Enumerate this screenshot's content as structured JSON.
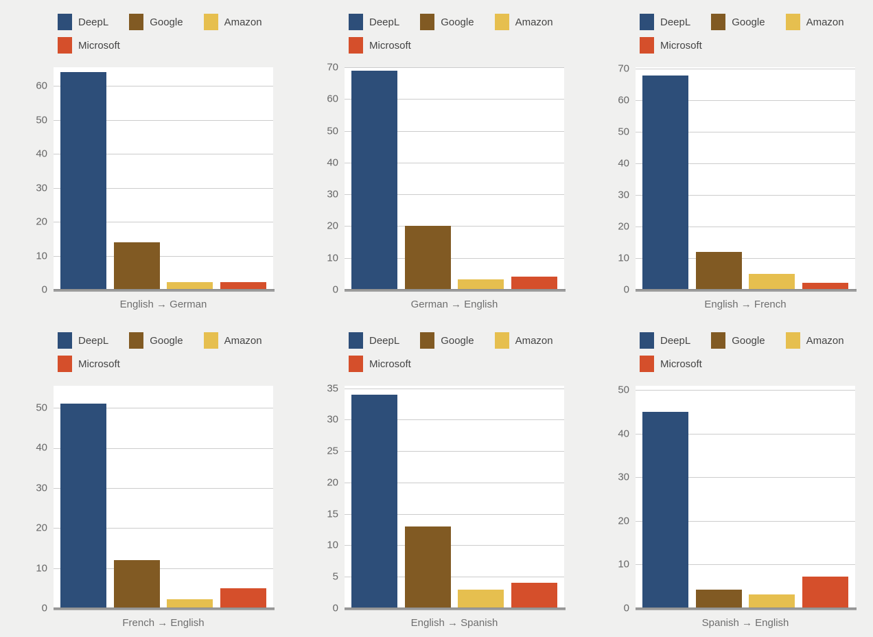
{
  "palette": {
    "background": "#f0f0ef",
    "plot_background": "#ffffff",
    "gridline": "#cccccc",
    "baseline": "#8c8c8c",
    "tick_text": "#666666",
    "axis_label_text": "#6e6e6e",
    "legend_text": "#444444"
  },
  "legend": [
    {
      "name": "DeepL",
      "color": "#2d4e79"
    },
    {
      "name": "Google",
      "color": "#815a23"
    },
    {
      "name": "Amazon",
      "color": "#e6bf4f"
    },
    {
      "name": "Microsoft",
      "color": "#d54f2b"
    }
  ],
  "chart_data": [
    {
      "type": "bar",
      "xlabel": "English → German",
      "categories": [
        "DeepL",
        "Google",
        "Amazon",
        "Microsoft"
      ],
      "values": [
        64,
        14,
        2.3,
        2.3
      ],
      "ylim": [
        0,
        65.5
      ],
      "yticks": [
        0,
        10,
        20,
        30,
        40,
        50,
        60
      ],
      "grid": true,
      "legend_position": "top"
    },
    {
      "type": "bar",
      "xlabel": "German → English",
      "categories": [
        "DeepL",
        "Google",
        "Amazon",
        "Microsoft"
      ],
      "values": [
        69,
        20,
        3.2,
        4.1
      ],
      "ylim": [
        0,
        70
      ],
      "yticks": [
        0,
        10,
        20,
        30,
        40,
        50,
        60,
        70
      ],
      "grid": true,
      "legend_position": "top"
    },
    {
      "type": "bar",
      "xlabel": "English → French",
      "categories": [
        "DeepL",
        "Google",
        "Amazon",
        "Microsoft"
      ],
      "values": [
        68,
        12,
        5.1,
        2.2
      ],
      "ylim": [
        0,
        70.5
      ],
      "yticks": [
        0,
        10,
        20,
        30,
        40,
        50,
        60,
        70
      ],
      "grid": true,
      "legend_position": "top"
    },
    {
      "type": "bar",
      "xlabel": "French → English",
      "categories": [
        "DeepL",
        "Google",
        "Amazon",
        "Microsoft"
      ],
      "values": [
        51,
        12,
        2.2,
        5
      ],
      "ylim": [
        0,
        55.5
      ],
      "yticks": [
        0,
        10,
        20,
        30,
        40,
        50
      ],
      "grid": true,
      "legend_position": "top"
    },
    {
      "type": "bar",
      "xlabel": "English → Spanish",
      "categories": [
        "DeepL",
        "Google",
        "Amazon",
        "Microsoft"
      ],
      "values": [
        34,
        13,
        3,
        4
      ],
      "ylim": [
        0,
        35.4
      ],
      "yticks": [
        0,
        5,
        10,
        15,
        20,
        25,
        30,
        35
      ],
      "grid": true,
      "legend_position": "top"
    },
    {
      "type": "bar",
      "xlabel": "Spanish → English",
      "categories": [
        "DeepL",
        "Google",
        "Amazon",
        "Microsoft"
      ],
      "values": [
        45,
        4.3,
        3.1,
        7.2
      ],
      "ylim": [
        0,
        51
      ],
      "yticks": [
        0,
        10,
        20,
        30,
        40,
        50
      ],
      "grid": true,
      "legend_position": "top"
    }
  ]
}
